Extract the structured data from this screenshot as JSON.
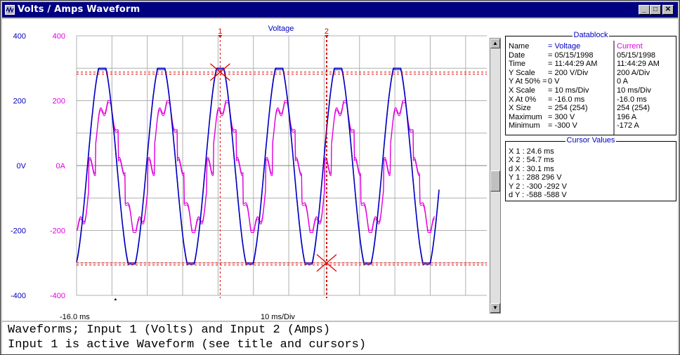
{
  "window": {
    "title": "Volts / Amps Waveform",
    "buttons": [
      "_",
      "□",
      "✕"
    ]
  },
  "plot": {
    "title": "Voltage",
    "x_start_label": "-16.0 ms",
    "x_scale_label": "10 ms/Div",
    "volts_ticks": [
      "400",
      "200",
      "0V",
      "-200",
      "-400"
    ],
    "amps_ticks": [
      "400",
      "200",
      "0A",
      "-200",
      "-400"
    ],
    "cursor1_label": "1",
    "cursor2_label": "2",
    "colors": {
      "voltage": "#0000c0",
      "current": "#e000e0",
      "cursor": "#e00000",
      "grid": "#b0b0b0"
    }
  },
  "chart_data": {
    "type": "line",
    "xlabel": "10 ms/Div",
    "x_unit": "ms",
    "xlim": [
      -16.0,
      100.0
    ],
    "ylim": [
      -400,
      400
    ],
    "series": [
      {
        "name": "Voltage",
        "unit": "V",
        "amplitude": 300,
        "period_ms": 16.67
      },
      {
        "name": "Current",
        "unit": "A",
        "amplitude": 200
      }
    ],
    "cursors": [
      {
        "label": "1",
        "x": 24.6,
        "y": 288
      },
      {
        "label": "2",
        "x": 54.7,
        "y": -300
      }
    ]
  },
  "datablock": {
    "title": "Datablock",
    "rows": [
      {
        "label": "Name",
        "value": "= Voltage",
        "current": "Current"
      },
      {
        "label": "Date",
        "value": "= 05/15/1998",
        "current": "05/15/1998"
      },
      {
        "label": "Time",
        "value": "= 11:44:29 AM",
        "current": "11:44:29 AM"
      },
      {
        "label": "Y Scale",
        "value": "= 200   V/Div",
        "current": "200   A/Div"
      },
      {
        "label": "Y At 50% =",
        "value": "  0   V",
        "current": "   0   A"
      },
      {
        "label": "X Scale",
        "value": "=  10   ms/Div",
        "current": " 10   ms/Div"
      },
      {
        "label": "X At 0%",
        "value": "=  -16.0 ms",
        "current": "-16.0 ms"
      },
      {
        "label": "X Size",
        "value": "= 254 (254)",
        "current": "254 (254)"
      },
      {
        "label": "Maximum",
        "value": "=  300   V",
        "current": "196   A"
      },
      {
        "label": "Minimum",
        "value": "=  -300   V",
        "current": "-172   A"
      }
    ]
  },
  "cursor_values": {
    "title": "Cursor Values",
    "rows": [
      "X 1 :     24.6 ms",
      "X 2 :     54.7 ms",
      "d X :     30.1 ms",
      "Y 1 :     288    296 V",
      "Y 2 :   -300   -292 V",
      "d Y :   -588   -588 V"
    ]
  },
  "status": {
    "line1": "Waveforms; Input 1 (Volts) and Input 2 (Amps)",
    "line2": "Input 1 is active Waveform (see title and cursors)"
  }
}
